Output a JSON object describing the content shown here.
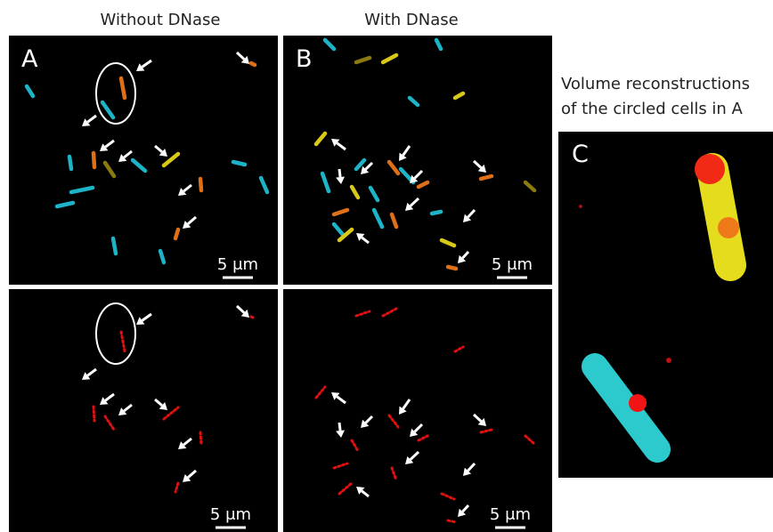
{
  "headers": [
    "Without DNase",
    "With DNase"
  ],
  "panel_labels": [
    "A",
    "B",
    "C"
  ],
  "scale_bars": [
    "5 μm",
    "5 μm",
    "5 μm",
    "5 μm"
  ],
  "caption_c": [
    "Volume reconstructions",
    "of the circled cells in A"
  ]
}
